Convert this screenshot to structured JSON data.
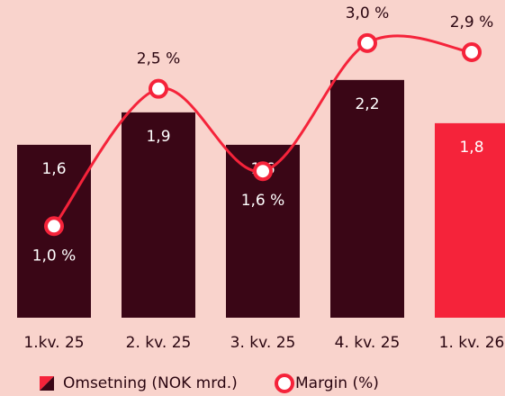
{
  "chart_data": {
    "type": "bar",
    "categories": [
      "1.kv. 25",
      "2. kv. 25",
      "3. kv. 25",
      "4. kv. 25",
      "1. kv. 26"
    ],
    "series": [
      {
        "name": "Omsetning (NOK mrd.)",
        "type": "bar",
        "color": "#3a0616",
        "colors": [
          "#3a0616",
          "#3a0616",
          "#3a0616",
          "#3a0616",
          "#f5233a"
        ],
        "values": [
          1.6,
          1.9,
          1.6,
          2.2,
          1.8
        ],
        "value_labels": [
          "1,6",
          "1,9",
          "1,6",
          "2,2",
          "1,8"
        ]
      },
      {
        "name": "Margin (%)",
        "type": "line",
        "axis": "y2",
        "color": "#f5233a",
        "values": [
          1.0,
          2.5,
          1.6,
          3.0,
          2.9
        ],
        "value_labels": [
          "1,0 %",
          "2,5 %",
          "1,6 %",
          "3,0 %",
          "2,9 %"
        ]
      }
    ],
    "ylim": [
      0,
      2.94
    ],
    "y2lim": [
      0,
      3.47
    ],
    "grid": false,
    "legend": "bottom"
  }
}
